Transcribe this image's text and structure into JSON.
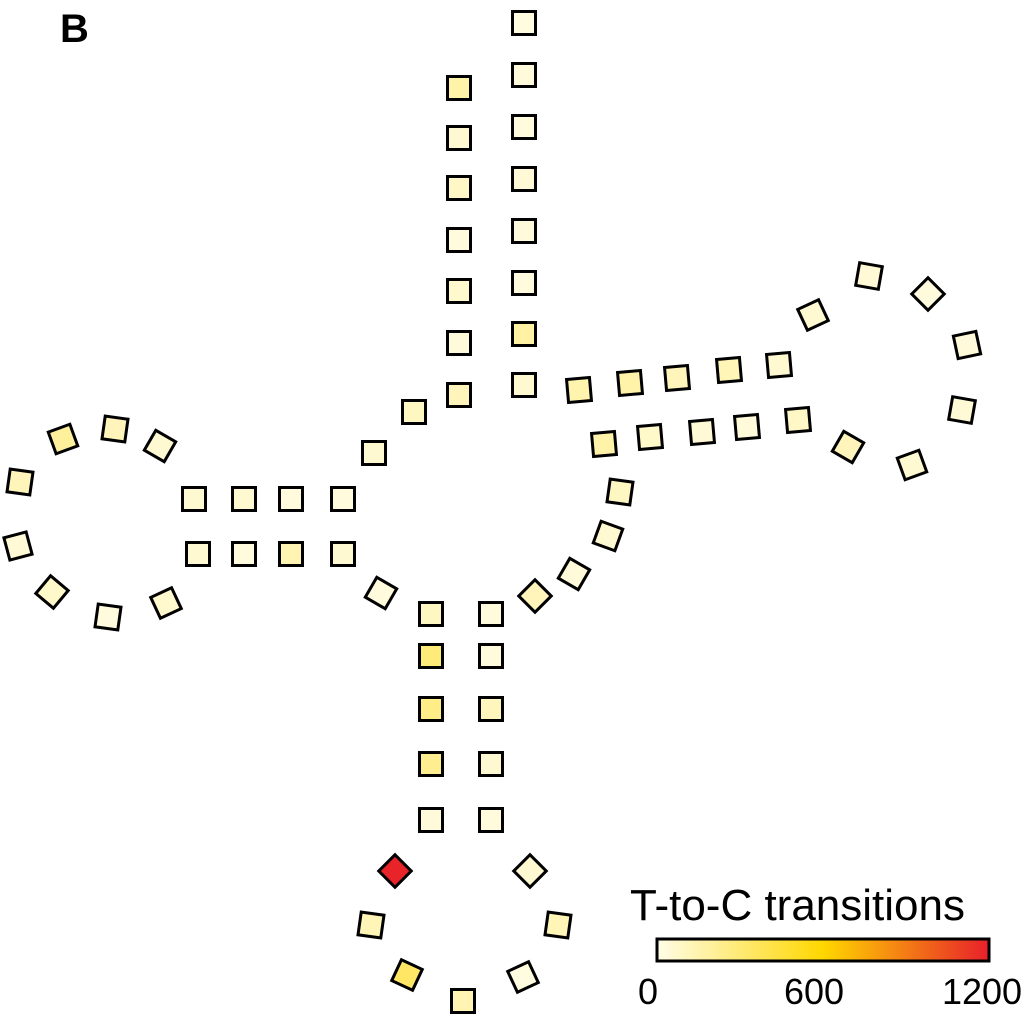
{
  "panel_label": "B",
  "legend": {
    "title": "T-to-C transitions",
    "min": 0,
    "max": 1200,
    "ticks": [
      {
        "value": 0,
        "label": "0"
      },
      {
        "value": 600,
        "label": "600"
      },
      {
        "value": 1200,
        "label": "1200"
      }
    ],
    "colors": [
      "#fffde8",
      "#ffd700",
      "#e8202a"
    ]
  },
  "nucleotide_values": [
    20,
    40,
    30,
    50,
    40,
    30,
    180,
    60,
    160,
    60,
    90,
    30,
    70,
    40,
    120,
    100,
    60,
    30,
    30,
    60,
    60,
    60,
    120,
    200,
    120,
    50,
    80,
    30,
    70,
    60,
    30,
    140,
    60,
    30,
    100,
    290,
    250,
    230,
    40,
    30,
    30,
    110,
    60,
    30,
    1190,
    130,
    340,
    140,
    20,
    130,
    60,
    120,
    40,
    60,
    100,
    160,
    80,
    50,
    40,
    90,
    120,
    60,
    50,
    40,
    30,
    50,
    60,
    60,
    130,
    120,
    160,
    150,
    150,
    90,
    130,
    70,
    100,
    60,
    150,
    170,
    100,
    70,
    40,
    80,
    70
  ]
}
